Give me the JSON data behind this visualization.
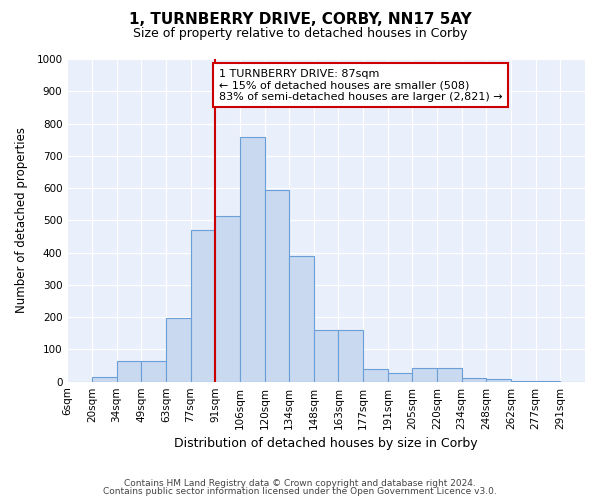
{
  "title": "1, TURNBERRY DRIVE, CORBY, NN17 5AY",
  "subtitle": "Size of property relative to detached houses in Corby",
  "xlabel": "Distribution of detached houses by size in Corby",
  "ylabel": "Number of detached properties",
  "footnote1": "Contains HM Land Registry data © Crown copyright and database right 2024.",
  "footnote2": "Contains public sector information licensed under the Open Government Licence v3.0.",
  "annotation_line1": "1 TURNBERRY DRIVE: 87sqm",
  "annotation_line2": "← 15% of detached houses are smaller (508)",
  "annotation_line3": "83% of semi-detached houses are larger (2,821) →",
  "bar_color": "#c9d9f0",
  "bar_edge_color": "#6a9fd8",
  "ref_line_color": "#cc0000",
  "ref_line_bin": 5,
  "categories": [
    "6sqm",
    "20sqm",
    "34sqm",
    "49sqm",
    "63sqm",
    "77sqm",
    "91sqm",
    "106sqm",
    "120sqm",
    "134sqm",
    "148sqm",
    "163sqm",
    "177sqm",
    "191sqm",
    "205sqm",
    "220sqm",
    "234sqm",
    "248sqm",
    "262sqm",
    "277sqm",
    "291sqm"
  ],
  "values": [
    0,
    13,
    65,
    65,
    198,
    470,
    515,
    758,
    595,
    390,
    160,
    160,
    40,
    27,
    42,
    42,
    12,
    7,
    3,
    3,
    0
  ],
  "ylim": [
    0,
    1000
  ],
  "yticks": [
    0,
    100,
    200,
    300,
    400,
    500,
    600,
    700,
    800,
    900,
    1000
  ],
  "bg_color": "#eaf0fb",
  "plot_bg_color": "#eaf0fb",
  "title_fontsize": 11,
  "subtitle_fontsize": 9,
  "annotation_fontsize": 8,
  "xlabel_fontsize": 9,
  "ylabel_fontsize": 8.5,
  "tick_fontsize": 7.5
}
